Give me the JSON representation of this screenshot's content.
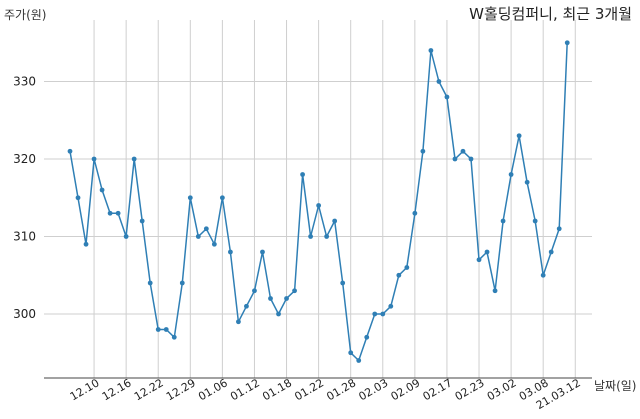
{
  "chart_data": {
    "type": "line",
    "title": "W홀딩컴퍼니, 최근 3개월",
    "ylabel": "주가(원)",
    "xlabel": "날짜(일)",
    "ylim": [
      292,
      338
    ],
    "yticks": [
      300,
      310,
      320,
      330
    ],
    "xtick_labels": [
      "12.10",
      "12.16",
      "12.22",
      "12.29",
      "01.06",
      "01.12",
      "01.18",
      "01.22",
      "01.28",
      "02.03",
      "02.09",
      "02.17",
      "02.23",
      "03.02",
      "03.08",
      "21.03.12"
    ],
    "grid": "vertical and horizontal",
    "line_color": "#2f7fb5",
    "series": [
      {
        "values": [
          321,
          315,
          309,
          320,
          316,
          313,
          313,
          310,
          320,
          312,
          304,
          298,
          298,
          297,
          304,
          315,
          310,
          311,
          309,
          315,
          308,
          299,
          301,
          303,
          308,
          302,
          300,
          302,
          303,
          318,
          310,
          314,
          310,
          312,
          304,
          295,
          294,
          297,
          300,
          300,
          301,
          305,
          306,
          313,
          321,
          334,
          330,
          328,
          320,
          321,
          320,
          307,
          308,
          303,
          312,
          318,
          323,
          317,
          312,
          305,
          308,
          311,
          335
        ]
      }
    ]
  }
}
